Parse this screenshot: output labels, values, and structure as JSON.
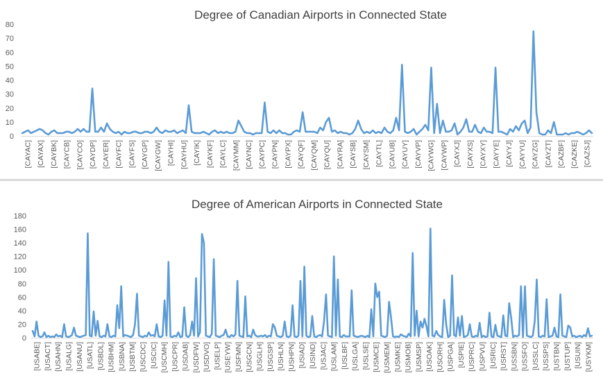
{
  "chart_data": [
    {
      "type": "line",
      "title": "Degree of Canadian Airports in Connected State",
      "xlabel": "",
      "ylabel": "",
      "ylim": [
        0,
        80
      ],
      "yticks": [
        0,
        10,
        20,
        30,
        40,
        50,
        60,
        70,
        80
      ],
      "grid": false,
      "legend": "none",
      "color": "#5b9bd5",
      "tick_labels": [
        "[CAYAC]",
        "[CAYAX]",
        "[CAYBK]",
        "[CAYCB]",
        "[CAYCO]",
        "[CAYDP]",
        "[CAYER]",
        "[CAYFC]",
        "[CAYFS]",
        "[CAYGP]",
        "[CAYGW]",
        "[CAYHI]",
        "[CAYHU]",
        "[CAYIK]",
        "[CAYKF]",
        "[CAYLC]",
        "[CAYMM]",
        "[CAYNC]",
        "[CAYPC]",
        "[CAYPN]",
        "[CAYPX]",
        "[CAYQF]",
        "[CAYQM]",
        "[CAYQU]",
        "[CAYRA]",
        "[CAYSB]",
        "[CAYSM]",
        "[CAYTL]",
        "[CAYUB]",
        "[CAYUY]",
        "[CAYVP]",
        "[CAYWG]",
        "[CAYWP]",
        "[CAYXJ]",
        "[CAYXS]",
        "[CAYXY]",
        "[CAYYE]",
        "[CAYYJ]",
        "[CAYYU]",
        "[CAYZG]",
        "[CAYZT]",
        "[CAZBF]",
        "[CAZKE]",
        "[CAZSJ]"
      ],
      "values": [
        2,
        3,
        4,
        2,
        3,
        4,
        5,
        4,
        2,
        1,
        3,
        4,
        2,
        2,
        2,
        3,
        3,
        2,
        3,
        5,
        3,
        5,
        3,
        3,
        34,
        3,
        3,
        6,
        3,
        9,
        5,
        3,
        2,
        3,
        1,
        3,
        2,
        2,
        3,
        3,
        2,
        2,
        3,
        3,
        2,
        3,
        6,
        3,
        2,
        4,
        3,
        3,
        4,
        2,
        3,
        4,
        2,
        22,
        3,
        2,
        2,
        2,
        3,
        2,
        1,
        3,
        4,
        2,
        3,
        2,
        3,
        2,
        2,
        3,
        11,
        7,
        3,
        2,
        2,
        1,
        2,
        2,
        2,
        24,
        3,
        2,
        4,
        2,
        4,
        2,
        2,
        1,
        1,
        3,
        4,
        3,
        17,
        3,
        3,
        3,
        3,
        2,
        6,
        4,
        10,
        13,
        3,
        4,
        2,
        3,
        2,
        2,
        1,
        2,
        5,
        11,
        5,
        2,
        3,
        2,
        4,
        2,
        3,
        2,
        6,
        3,
        2,
        4,
        13,
        4,
        51,
        3,
        2,
        3,
        5,
        1,
        3,
        5,
        8,
        4,
        49,
        2,
        23,
        2,
        11,
        3,
        3,
        4,
        9,
        1,
        3,
        6,
        12,
        3,
        3,
        8,
        3,
        2,
        6,
        3,
        3,
        2,
        49,
        3,
        3,
        2,
        1,
        5,
        3,
        7,
        4,
        9,
        11,
        2,
        6,
        75,
        17,
        2,
        1,
        1,
        4,
        2,
        10,
        1,
        1,
        1,
        2,
        1,
        2,
        2,
        3,
        2,
        1,
        2,
        4,
        2
      ]
    },
    {
      "type": "line",
      "title": "Degree of American Airports in Connected State",
      "xlabel": "",
      "ylabel": "",
      "ylim": [
        0,
        180
      ],
      "yticks": [
        0,
        20,
        40,
        60,
        80,
        100,
        120,
        140,
        160,
        180
      ],
      "grid": false,
      "legend": "none",
      "color": "#5b9bd5",
      "tick_labels": [
        "[USABE]",
        "[USACT]",
        "[USAHN]",
        "[USALG]",
        "[USANU]",
        "[USATL]",
        "[USBDL]",
        "[USBHM]",
        "[USBNA]",
        "[USBTM]",
        "[USCDC]",
        "[USCIC]",
        "[USCMH]",
        "[USCPR]",
        "[USDAB]",
        "[USDFW]",
        "[USDVO]",
        "[USELP]",
        "[USEYW]",
        "[USFMN]",
        "[USGCN]",
        "[USGLH]",
        "[USGSP]",
        "[USHLN]",
        "[USHPN]",
        "[USIAD]",
        "[USIND]",
        "[USJAC]",
        "[USLAM]",
        "[USLBF]",
        "[USLGA]",
        "[USLSE]",
        "[USMCE]",
        "[USMEM]",
        "[USMKE]",
        "[USMOB]",
        "[USMSP]",
        "[USOAK]",
        "[USORH]",
        "[USPGA]",
        "[USPIE]",
        "[USPRC]",
        "[USPVU]",
        "[USRIC]",
        "[USRST]",
        "[USSBN]",
        "[USSFO]",
        "[USSLC]",
        "[USSPS]",
        "[USTBN]",
        "[USTUP]",
        "[USUIN]",
        "[USYKM]"
      ],
      "values": [
        10,
        2,
        24,
        3,
        1,
        2,
        8,
        1,
        3,
        1,
        2,
        1,
        5,
        2,
        3,
        1,
        20,
        2,
        1,
        2,
        4,
        15,
        3,
        2,
        1,
        2,
        3,
        4,
        154,
        3,
        2,
        39,
        3,
        25,
        2,
        1,
        3,
        2,
        20,
        2,
        1,
        3,
        2,
        48,
        14,
        76,
        2,
        4,
        3,
        2,
        1,
        4,
        20,
        65,
        3,
        2,
        1,
        3,
        2,
        8,
        3,
        4,
        2,
        20,
        2,
        1,
        3,
        55,
        3,
        112,
        2,
        1,
        3,
        2,
        8,
        1,
        2,
        45,
        3,
        1,
        4,
        24,
        3,
        88,
        2,
        8,
        153,
        140,
        3,
        2,
        1,
        6,
        116,
        3,
        2,
        1,
        3,
        4,
        12,
        2,
        1,
        4,
        2,
        5,
        84,
        3,
        2,
        1,
        61,
        2,
        3,
        1,
        12,
        4,
        2,
        2,
        3,
        2,
        4,
        1,
        3,
        2,
        20,
        15,
        3,
        2,
        1,
        3,
        24,
        2,
        1,
        3,
        48,
        2,
        1,
        3,
        84,
        2,
        105,
        3,
        1,
        2,
        32,
        2,
        1,
        3,
        4,
        2,
        25,
        64,
        3,
        2,
        1,
        120,
        3,
        86,
        2,
        1,
        4,
        2,
        2,
        2,
        70,
        3,
        2,
        1,
        2,
        3,
        2,
        1,
        3,
        1,
        42,
        2,
        80,
        60,
        68,
        3,
        2,
        1,
        3,
        53,
        30,
        2,
        1,
        2,
        1,
        5,
        3,
        2,
        1,
        6,
        2,
        125,
        3,
        40,
        2,
        24,
        15,
        28,
        17,
        2,
        161,
        3,
        2,
        10,
        4,
        2,
        1,
        56,
        20,
        1,
        3,
        92,
        4,
        2,
        30,
        3,
        32,
        1,
        2,
        4,
        20,
        2,
        1,
        3,
        2,
        22,
        1,
        3,
        1,
        2,
        37,
        2,
        1,
        19,
        3,
        2,
        1,
        33,
        3,
        2,
        51,
        30,
        1,
        3,
        2,
        4,
        76,
        1,
        76,
        3,
        2,
        1,
        3,
        25,
        86,
        2,
        1,
        3,
        2,
        57,
        1,
        2,
        3,
        15,
        2,
        1,
        64,
        3,
        2,
        1,
        18,
        15,
        2,
        3,
        1,
        2,
        3,
        1,
        4,
        2,
        14,
        2,
        3
      ]
    }
  ]
}
